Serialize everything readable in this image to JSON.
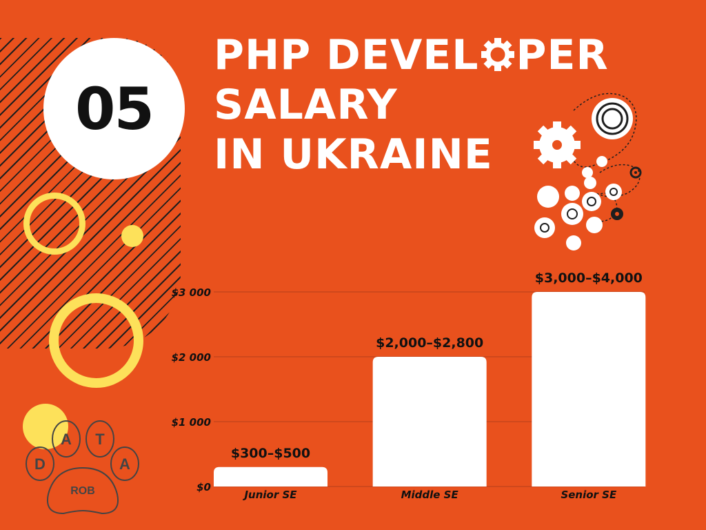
{
  "badge_number": "05",
  "title_lines": [
    "PHP DEVEL",
    "PER",
    "SALARY",
    "IN UKRAINE"
  ],
  "logo": {
    "letters": [
      "D",
      "A",
      "T",
      "A"
    ],
    "label": "ROB"
  },
  "colors": {
    "background": "#e9511d",
    "bar": "#ffffff",
    "accent": "#fde15a",
    "text_dark": "#111111",
    "gridline": "#b5401a"
  },
  "icons": [
    "gear-icon",
    "gears-illustration",
    "paw-logo"
  ],
  "chart_data": {
    "type": "bar",
    "categories": [
      "Junior SE",
      "Middle SE",
      "Senior SE"
    ],
    "values": [
      300,
      2000,
      3000
    ],
    "value_labels": [
      "$300–$500",
      "$2,000–$2,800",
      "$3,000–$4,000"
    ],
    "yticks": [
      0,
      1000,
      2000,
      3000
    ],
    "ytick_labels": [
      "$0",
      "$1 000",
      "$2 000",
      "$3 000"
    ],
    "ylim": [
      0,
      3000
    ],
    "grid": true,
    "legend": "none"
  }
}
